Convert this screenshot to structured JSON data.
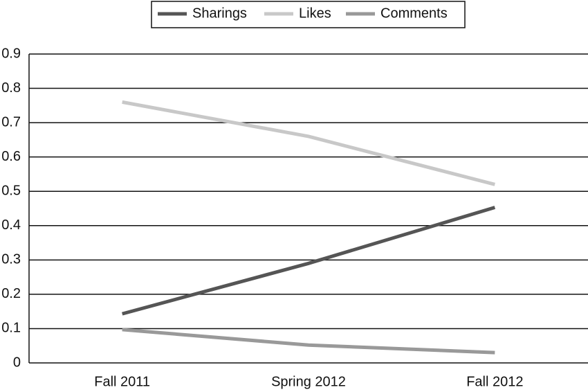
{
  "chart_data": {
    "type": "line",
    "categories": [
      "Fall 2011",
      "Spring 2012",
      "Fall 2012"
    ],
    "series": [
      {
        "name": "Sharings",
        "color": "#555555",
        "values": [
          0.143,
          0.29,
          0.453
        ]
      },
      {
        "name": "Likes",
        "color": "#c8c8c8",
        "values": [
          0.76,
          0.66,
          0.52
        ]
      },
      {
        "name": "Comments",
        "color": "#999999",
        "values": [
          0.097,
          0.052,
          0.03
        ]
      }
    ],
    "ylim": [
      0,
      0.9
    ],
    "yticks": [
      0,
      0.1,
      0.2,
      0.3,
      0.4,
      0.5,
      0.6,
      0.7,
      0.8,
      0.9
    ],
    "grid": true,
    "legend": "top"
  }
}
